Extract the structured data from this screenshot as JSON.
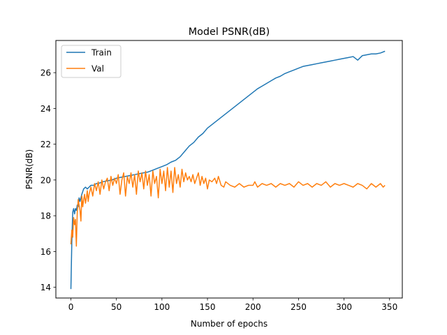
{
  "chart_data": {
    "type": "line",
    "title": "Model PSNR(dB)",
    "xlabel": "Number of epochs",
    "ylabel": "PSNR(dB)",
    "xlim": [
      -16.5,
      364
    ],
    "ylim": [
      13.4,
      27.8
    ],
    "xticks": [
      0,
      50,
      100,
      150,
      200,
      250,
      300,
      350
    ],
    "yticks": [
      14,
      16,
      18,
      20,
      22,
      24,
      26
    ],
    "grid": false,
    "legend": "top-left",
    "series": [
      {
        "name": "Train",
        "color": "#1f77b4",
        "points": [
          [
            0,
            13.9
          ],
          [
            1,
            16.5
          ],
          [
            2,
            18.2
          ],
          [
            3,
            18.4
          ],
          [
            4,
            18.1
          ],
          [
            5,
            18.4
          ],
          [
            6,
            18.3
          ],
          [
            7,
            18.6
          ],
          [
            8,
            18.5
          ],
          [
            9,
            19.0
          ],
          [
            10,
            18.8
          ],
          [
            12,
            19.2
          ],
          [
            14,
            19.5
          ],
          [
            16,
            19.6
          ],
          [
            18,
            19.5
          ],
          [
            20,
            19.6
          ],
          [
            22,
            19.7
          ],
          [
            25,
            19.7
          ],
          [
            28,
            19.8
          ],
          [
            30,
            19.8
          ],
          [
            35,
            19.9
          ],
          [
            40,
            19.95
          ],
          [
            45,
            20.0
          ],
          [
            50,
            20.1
          ],
          [
            55,
            20.15
          ],
          [
            60,
            20.2
          ],
          [
            65,
            20.25
          ],
          [
            70,
            20.3
          ],
          [
            75,
            20.35
          ],
          [
            80,
            20.4
          ],
          [
            85,
            20.45
          ],
          [
            90,
            20.55
          ],
          [
            95,
            20.65
          ],
          [
            100,
            20.75
          ],
          [
            105,
            20.85
          ],
          [
            110,
            21.0
          ],
          [
            115,
            21.1
          ],
          [
            120,
            21.3
          ],
          [
            125,
            21.6
          ],
          [
            130,
            21.9
          ],
          [
            135,
            22.1
          ],
          [
            140,
            22.4
          ],
          [
            145,
            22.6
          ],
          [
            150,
            22.9
          ],
          [
            155,
            23.1
          ],
          [
            160,
            23.3
          ],
          [
            165,
            23.5
          ],
          [
            170,
            23.7
          ],
          [
            175,
            23.9
          ],
          [
            180,
            24.1
          ],
          [
            185,
            24.3
          ],
          [
            190,
            24.5
          ],
          [
            195,
            24.7
          ],
          [
            200,
            24.9
          ],
          [
            205,
            25.1
          ],
          [
            210,
            25.25
          ],
          [
            215,
            25.4
          ],
          [
            220,
            25.55
          ],
          [
            225,
            25.7
          ],
          [
            230,
            25.8
          ],
          [
            235,
            25.95
          ],
          [
            240,
            26.05
          ],
          [
            245,
            26.15
          ],
          [
            250,
            26.25
          ],
          [
            255,
            26.35
          ],
          [
            260,
            26.4
          ],
          [
            265,
            26.45
          ],
          [
            270,
            26.5
          ],
          [
            275,
            26.55
          ],
          [
            280,
            26.6
          ],
          [
            285,
            26.65
          ],
          [
            290,
            26.7
          ],
          [
            295,
            26.75
          ],
          [
            300,
            26.8
          ],
          [
            305,
            26.85
          ],
          [
            310,
            26.9
          ],
          [
            315,
            26.7
          ],
          [
            320,
            26.95
          ],
          [
            325,
            27.0
          ],
          [
            330,
            27.05
          ],
          [
            335,
            27.05
          ],
          [
            340,
            27.1
          ],
          [
            345,
            27.2
          ]
        ]
      },
      {
        "name": "Val",
        "color": "#ff7f0e",
        "points": [
          [
            0,
            16.4
          ],
          [
            1,
            17.2
          ],
          [
            2,
            16.8
          ],
          [
            3,
            17.9
          ],
          [
            4,
            17.5
          ],
          [
            5,
            17.8
          ],
          [
            6,
            16.3
          ],
          [
            7,
            18.2
          ],
          [
            8,
            18.9
          ],
          [
            9,
            18.6
          ],
          [
            10,
            18.3
          ],
          [
            11,
            17.7
          ],
          [
            12,
            19.1
          ],
          [
            13,
            18.5
          ],
          [
            14,
            18.9
          ],
          [
            15,
            19.2
          ],
          [
            16,
            18.7
          ],
          [
            17,
            19.0
          ],
          [
            18,
            19.4
          ],
          [
            19,
            18.8
          ],
          [
            20,
            19.2
          ],
          [
            22,
            19.6
          ],
          [
            24,
            19.1
          ],
          [
            26,
            19.8
          ],
          [
            28,
            19.4
          ],
          [
            30,
            19.9
          ],
          [
            32,
            19.2
          ],
          [
            34,
            20.0
          ],
          [
            36,
            19.5
          ],
          [
            38,
            19.9
          ],
          [
            40,
            20.1
          ],
          [
            42,
            19.4
          ],
          [
            44,
            20.2
          ],
          [
            46,
            19.7
          ],
          [
            48,
            20.1
          ],
          [
            50,
            19.8
          ],
          [
            52,
            20.3
          ],
          [
            54,
            19.2
          ],
          [
            56,
            20.0
          ],
          [
            58,
            20.4
          ],
          [
            60,
            19.1
          ],
          [
            62,
            20.2
          ],
          [
            64,
            19.8
          ],
          [
            66,
            20.4
          ],
          [
            68,
            19.6
          ],
          [
            70,
            20.3
          ],
          [
            72,
            19.2
          ],
          [
            74,
            20.5
          ],
          [
            76,
            19.9
          ],
          [
            78,
            20.4
          ],
          [
            80,
            19.5
          ],
          [
            82,
            20.5
          ],
          [
            84,
            19.7
          ],
          [
            86,
            20.3
          ],
          [
            88,
            19.1
          ],
          [
            90,
            20.5
          ],
          [
            92,
            19.8
          ],
          [
            94,
            20.2
          ],
          [
            96,
            19.0
          ],
          [
            98,
            20.6
          ],
          [
            100,
            19.8
          ],
          [
            102,
            20.5
          ],
          [
            104,
            19.4
          ],
          [
            106,
            20.7
          ],
          [
            108,
            19.6
          ],
          [
            110,
            20.5
          ],
          [
            112,
            19.3
          ],
          [
            114,
            20.7
          ],
          [
            116,
            19.8
          ],
          [
            118,
            20.3
          ],
          [
            120,
            19.6
          ],
          [
            122,
            20.6
          ],
          [
            124,
            19.9
          ],
          [
            126,
            20.4
          ],
          [
            128,
            20.0
          ],
          [
            130,
            20.2
          ],
          [
            132,
            19.9
          ],
          [
            134,
            20.3
          ],
          [
            136,
            19.8
          ],
          [
            138,
            20.1
          ],
          [
            140,
            20.4
          ],
          [
            142,
            19.7
          ],
          [
            144,
            20.2
          ],
          [
            146,
            19.8
          ],
          [
            148,
            20.1
          ],
          [
            150,
            19.5
          ],
          [
            152,
            20.0
          ],
          [
            155,
            19.9
          ],
          [
            158,
            20.1
          ],
          [
            160,
            19.8
          ],
          [
            162,
            20.2
          ],
          [
            165,
            19.7
          ],
          [
            168,
            19.6
          ],
          [
            170,
            19.9
          ],
          [
            175,
            19.7
          ],
          [
            180,
            19.6
          ],
          [
            185,
            19.8
          ],
          [
            190,
            19.6
          ],
          [
            195,
            19.7
          ],
          [
            200,
            19.7
          ],
          [
            202,
            19.9
          ],
          [
            205,
            19.6
          ],
          [
            210,
            19.8
          ],
          [
            215,
            19.7
          ],
          [
            220,
            19.8
          ],
          [
            225,
            19.6
          ],
          [
            230,
            19.8
          ],
          [
            235,
            19.7
          ],
          [
            240,
            19.8
          ],
          [
            245,
            19.6
          ],
          [
            250,
            19.9
          ],
          [
            255,
            19.7
          ],
          [
            260,
            19.8
          ],
          [
            265,
            19.6
          ],
          [
            270,
            19.8
          ],
          [
            275,
            19.7
          ],
          [
            280,
            19.9
          ],
          [
            285,
            19.6
          ],
          [
            290,
            19.8
          ],
          [
            295,
            19.7
          ],
          [
            300,
            19.8
          ],
          [
            305,
            19.7
          ],
          [
            310,
            19.6
          ],
          [
            315,
            19.8
          ],
          [
            320,
            19.7
          ],
          [
            325,
            19.5
          ],
          [
            330,
            19.8
          ],
          [
            335,
            19.6
          ],
          [
            340,
            19.8
          ],
          [
            343,
            19.6
          ],
          [
            345,
            19.7
          ]
        ]
      }
    ]
  }
}
